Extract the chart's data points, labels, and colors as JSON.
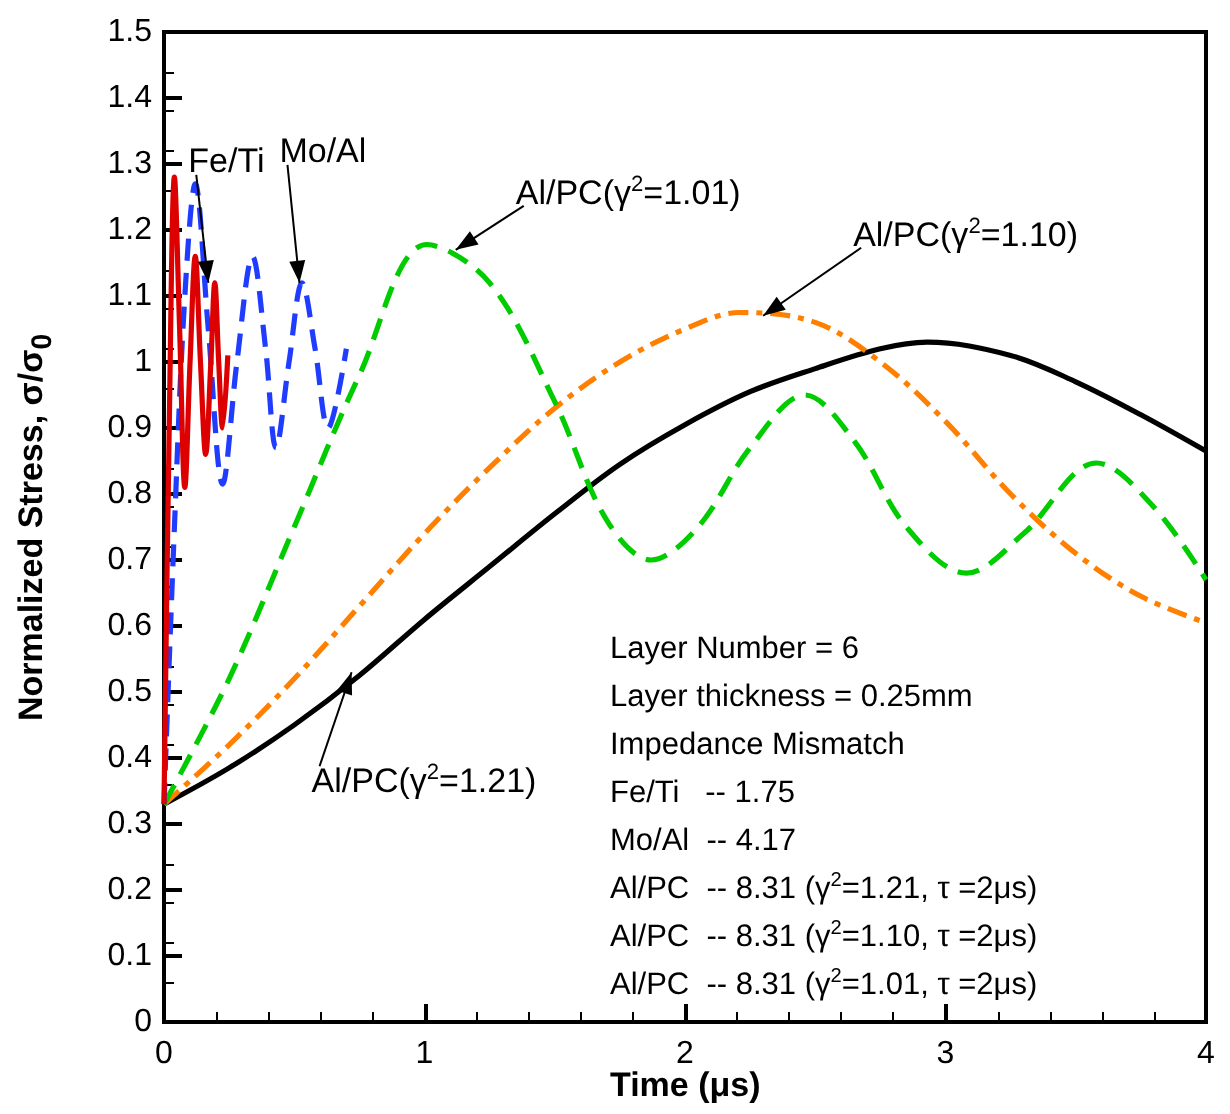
{
  "chart_data": {
    "type": "line",
    "xlabel": "Time (μs)",
    "ylabel": "Normalized Stress, σ/σ$_{0}$",
    "xlim": [
      0,
      4
    ],
    "xticks": [
      0,
      1,
      2,
      3,
      4
    ],
    "ylim": [
      0,
      1.5
    ],
    "yticks": [
      0,
      0.1,
      0.2,
      0.3,
      0.4,
      0.5,
      0.6,
      0.7,
      0.8,
      0.9,
      1,
      1.1,
      1.2,
      1.3,
      1.4,
      1.5
    ],
    "grid": false,
    "marker": "none",
    "series": [
      {
        "color": "#000000",
        "line_style": "solid",
        "x": [
          0,
          0.25,
          0.5,
          0.75,
          1,
          1.25,
          1.5,
          1.75,
          2,
          2.25,
          2.5,
          2.75,
          2.93,
          3.25,
          3.5,
          3.75,
          4
        ],
        "values": [
          0.33,
          0.385,
          0.45,
          0.525,
          0.61,
          0.69,
          0.77,
          0.845,
          0.905,
          0.955,
          0.99,
          1.02,
          1.03,
          1.01,
          0.97,
          0.92,
          0.865
        ]
      },
      {
        "color": "#ff8000",
        "line_style": "dashdot",
        "x": [
          0,
          0.25,
          0.5,
          0.75,
          1,
          1.25,
          1.5,
          1.75,
          2,
          2.21,
          2.5,
          2.75,
          3,
          3.25,
          3.5,
          3.75,
          4
        ],
        "values": [
          0.33,
          0.42,
          0.52,
          0.63,
          0.74,
          0.84,
          0.93,
          1.0,
          1.05,
          1.075,
          1.06,
          1.0,
          0.91,
          0.8,
          0.71,
          0.645,
          0.605
        ]
      },
      {
        "color": "#00cc00",
        "line_style": "dashed",
        "x": [
          0,
          0.25,
          0.5,
          0.75,
          1.01,
          1.25,
          1.5,
          1.7,
          1.87,
          2.05,
          2.25,
          2.46,
          2.65,
          2.85,
          3.08,
          3.3,
          3.58,
          3.8,
          4
        ],
        "values": [
          0.33,
          0.52,
          0.75,
          0.98,
          1.178,
          1.12,
          0.94,
          0.76,
          0.7,
          0.75,
          0.87,
          0.95,
          0.88,
          0.75,
          0.68,
          0.74,
          0.847,
          0.78,
          0.67
        ]
      },
      {
        "color": "#1f3cff",
        "line_style": "dashed",
        "x": [
          0,
          0.04,
          0.08,
          0.12,
          0.17,
          0.225,
          0.28,
          0.34,
          0.39,
          0.43,
          0.48,
          0.53,
          0.58,
          0.63,
          0.7
        ],
        "values": [
          0.33,
          0.75,
          1.1,
          1.27,
          1.05,
          0.815,
          1.0,
          1.16,
          1.02,
          0.87,
          1.0,
          1.12,
          1.02,
          0.9,
          1.02
        ]
      },
      {
        "color": "#dd0000",
        "line_style": "solid",
        "x": [
          0,
          0.02,
          0.04,
          0.06,
          0.08,
          0.1,
          0.12,
          0.14,
          0.16,
          0.18,
          0.195,
          0.21,
          0.225,
          0.245
        ],
        "values": [
          0.33,
          0.9,
          1.28,
          1.05,
          0.81,
          1.0,
          1.16,
          1.0,
          0.86,
          1.0,
          1.12,
          1.0,
          0.9,
          1.01
        ]
      }
    ],
    "annotations": [
      {
        "text": "Fe/Ti",
        "x": 0.17,
        "y": 1.12
      },
      {
        "text": "Mo/Al",
        "x": 0.52,
        "y": 1.12
      },
      {
        "text": "Al/PC(γ$^{2}$=1.01)",
        "x": 1.12,
        "y": 1.17
      },
      {
        "text": "Al/PC(γ$^{2}$=1.10)",
        "x": 2.3,
        "y": 1.07
      },
      {
        "text": "Al/PC(γ$^{2}$=1.21)",
        "x": 0.72,
        "y": 0.53
      },
      "Layer Number = 6",
      "Layer thickness = 0.25mm",
      "Impedance Mismatch",
      "Fe/Ti   -- 1.75",
      "Mo/Al  -- 4.17",
      "Al/PC  -- 8.31 (γ$^{2}$=1.21, τ =2μs)",
      "Al/PC  -- 8.31 (γ$^{2}$=1.10, τ =2μs)",
      "Al/PC  -- 8.31 (γ$^{2}$=1.01, τ =2μs)"
    ]
  }
}
